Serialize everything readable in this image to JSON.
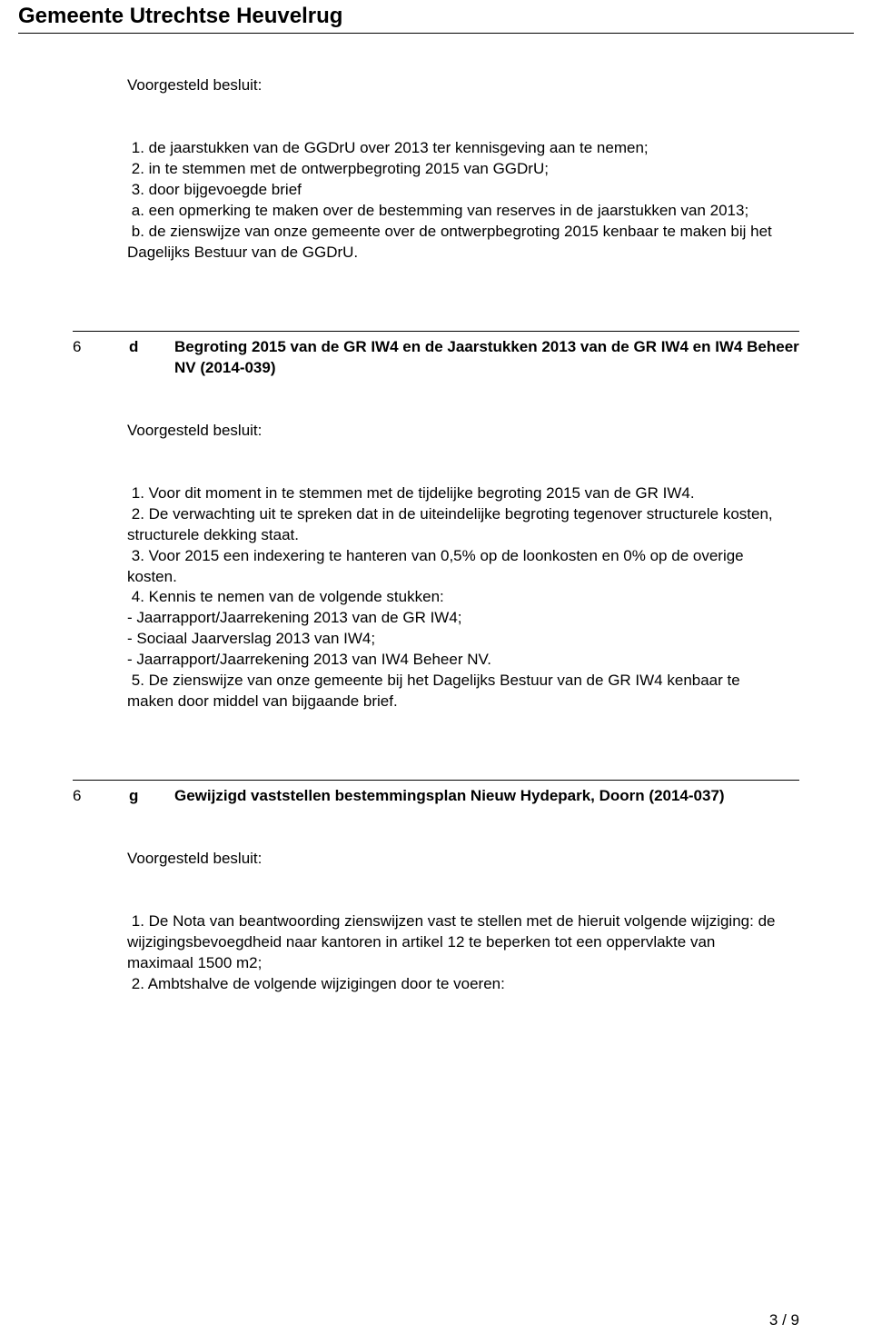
{
  "header": {
    "title": "Gemeente Utrechtse Heuvelrug"
  },
  "labels": {
    "proposed": "Voorgesteld besluit:"
  },
  "section_a": {
    "p1": " 1. de jaarstukken van de GGDrU over 2013 ter kennisgeving aan te nemen;",
    "p2": " 2. in te stemmen met de ontwerpbegroting 2015 van GGDrU;",
    "p3": " 3. door bijgevoegde brief",
    "p4": " a. een opmerking te maken over de bestemming van reserves in de jaarstukken van 2013;",
    "p5": " b. de zienswijze van onze gemeente over de ontwerpbegroting 2015 kenbaar te maken bij het Dagelijks Bestuur van de GGDrU."
  },
  "item_d": {
    "num": "6",
    "sub": "d",
    "title": "Begroting 2015 van de GR IW4 en de Jaarstukken 2013 van de GR IW4 en IW4 Beheer NV (2014-039)",
    "p1": " 1. Voor dit moment in te stemmen met de tijdelijke begroting 2015 van de GR IW4.",
    "p2": " 2. De verwachting uit te spreken dat in de uiteindelijke begroting tegenover structurele kosten, structurele dekking staat.",
    "p3": " 3. Voor 2015 een indexering te hanteren van 0,5% op de loonkosten en 0% op de overige kosten.",
    "p4": " 4. Kennis te nemen van de volgende stukken:",
    "p5": "- Jaarrapport/Jaarrekening 2013 van de GR IW4;",
    "p6": "- Sociaal Jaarverslag 2013 van IW4;",
    "p7": "- Jaarrapport/Jaarrekening 2013 van IW4 Beheer NV.",
    "p8": " 5. De zienswijze van onze gemeente bij het Dagelijks Bestuur van de GR IW4 kenbaar te maken door middel van bijgaande brief."
  },
  "item_g": {
    "num": "6",
    "sub": "g",
    "title": "Gewijzigd vaststellen bestemmingsplan Nieuw Hydepark, Doorn (2014-037)",
    "p1": " 1. De Nota van beantwoording zienswijzen vast te stellen met de hieruit volgende wijziging: de wijzigingsbevoegdheid naar kantoren in artikel 12 te beperken tot een oppervlakte van maximaal 1500 m2;",
    "p2": " 2. Ambtshalve de volgende wijzigingen door te voeren:"
  },
  "footer": {
    "page": "3 / 9"
  }
}
